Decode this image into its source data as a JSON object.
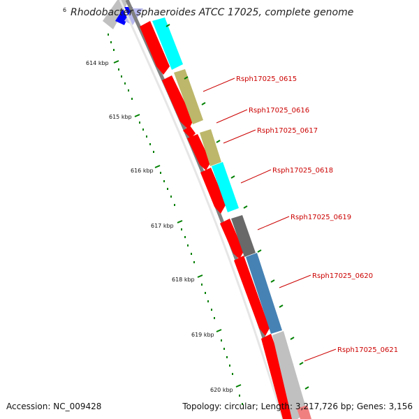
{
  "title": "Rhodobacter sphaeroides ATCC 17025, complete genome",
  "accession": "Accession: NC_009428",
  "topology": "Topology: circular; Length: 3,217,726 bp; Genes: 3,156",
  "ticks": [
    {
      "label": "614 kbp"
    },
    {
      "label": "615 kbp"
    },
    {
      "label": "616 kbp"
    },
    {
      "label": "617 kbp"
    },
    {
      "label": "618 kbp"
    },
    {
      "label": "619 kbp"
    },
    {
      "label": "620 kbp"
    }
  ],
  "gene_labels": [
    {
      "label": "Rsph17025_0615"
    },
    {
      "label": "Rsph17025_0616"
    },
    {
      "label": "Rsph17025_0617"
    },
    {
      "label": "Rsph17025_0618"
    },
    {
      "label": "Rsph17025_0619"
    },
    {
      "label": "Rsph17025_0620"
    },
    {
      "label": "Rsph17025_0621"
    }
  ],
  "colors": {
    "cds": "#ff0000",
    "cyan": "#00ffff",
    "khaki": "#bdb76b",
    "dark_gray": "#696969",
    "steel_blue": "#4682b4",
    "light_gray": "#c0c0c0",
    "blue": "#0000ff",
    "tick": "#008000",
    "backbone": "#808080",
    "label": "#cc0000"
  }
}
